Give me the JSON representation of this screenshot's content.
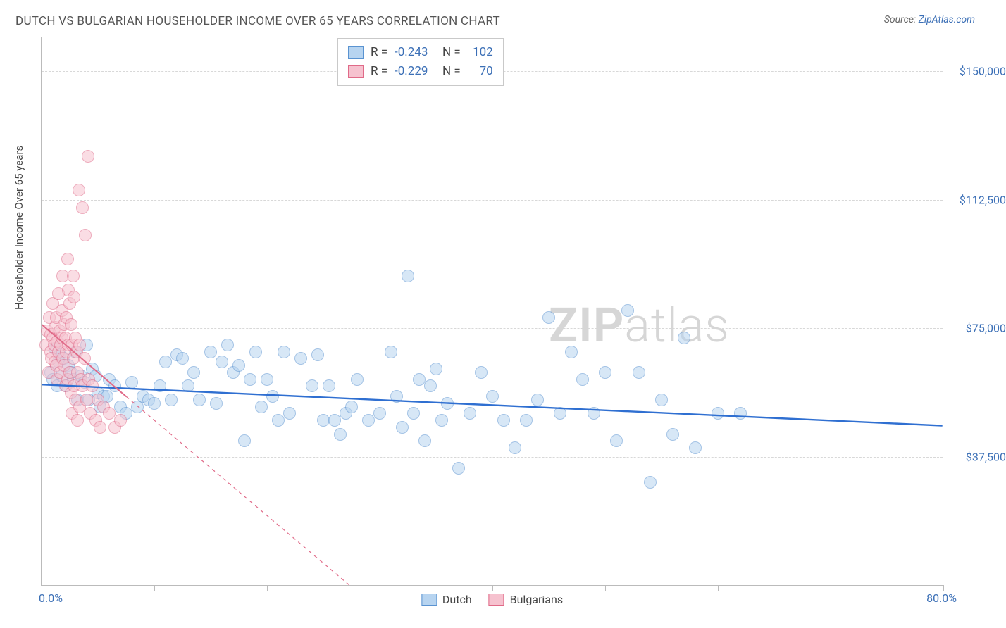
{
  "title": "DUTCH VS BULGARIAN HOUSEHOLDER INCOME OVER 65 YEARS CORRELATION CHART",
  "source_label": "Source: ",
  "source_name": "ZipAtlas.com",
  "watermark": {
    "zip": "ZIP",
    "atlas": "atlas"
  },
  "chart": {
    "type": "scatter",
    "background_color": "#ffffff",
    "grid_color": "#d8d8d8",
    "axis_color": "#bbbbbb",
    "xlim": [
      0,
      80
    ],
    "ylim": [
      0,
      160000
    ],
    "x_axis": {
      "min_label": "0.0%",
      "max_label": "80.0%",
      "tick_positions": [
        0,
        10,
        20,
        30,
        40,
        50,
        60,
        70,
        80
      ]
    },
    "y_axis": {
      "label": "Householder Income Over 65 years",
      "label_fontsize": 15,
      "ticks": [
        {
          "value": 37500,
          "label": "$37,500"
        },
        {
          "value": 75000,
          "label": "$75,000"
        },
        {
          "value": 112500,
          "label": "$112,500"
        },
        {
          "value": 150000,
          "label": "$150,000"
        }
      ],
      "tick_color": "#3b6fb6",
      "tick_fontsize": 16
    },
    "series": [
      {
        "name": "Dutch",
        "fill": "#b7d4f0",
        "stroke": "#5a93d1",
        "opacity": 0.55,
        "marker_radius": 9,
        "trend": {
          "color": "#2f6fd1",
          "width": 2.4,
          "x1": 0,
          "y1": 58500,
          "x2": 80,
          "y2": 46500,
          "dash": "none"
        },
        "points": [
          [
            0.8,
            62000
          ],
          [
            1.0,
            60000
          ],
          [
            1.2,
            69000
          ],
          [
            1.4,
            58000
          ],
          [
            1.5,
            65000
          ],
          [
            1.6,
            67000
          ],
          [
            1.8,
            61000
          ],
          [
            2.0,
            66000
          ],
          [
            2.2,
            58000
          ],
          [
            2.4,
            64000
          ],
          [
            2.6,
            62000
          ],
          [
            2.8,
            60000
          ],
          [
            3.0,
            68000
          ],
          [
            3.2,
            54000
          ],
          [
            3.5,
            61000
          ],
          [
            3.8,
            59000
          ],
          [
            4.0,
            70000
          ],
          [
            4.2,
            54000
          ],
          [
            4.5,
            63000
          ],
          [
            4.8,
            61000
          ],
          [
            5.0,
            56000
          ],
          [
            5.2,
            52000
          ],
          [
            5.5,
            55000
          ],
          [
            5.8,
            55000
          ],
          [
            6.0,
            60000
          ],
          [
            6.5,
            58000
          ],
          [
            7.0,
            52000
          ],
          [
            7.5,
            50000
          ],
          [
            8.0,
            59000
          ],
          [
            8.5,
            52000
          ],
          [
            9.0,
            55000
          ],
          [
            9.5,
            54000
          ],
          [
            10.0,
            53000
          ],
          [
            10.5,
            58000
          ],
          [
            11.0,
            65000
          ],
          [
            11.5,
            54000
          ],
          [
            12.0,
            67000
          ],
          [
            12.5,
            66000
          ],
          [
            13.0,
            58000
          ],
          [
            13.5,
            62000
          ],
          [
            14.0,
            54000
          ],
          [
            15.0,
            68000
          ],
          [
            15.5,
            53000
          ],
          [
            16.0,
            65000
          ],
          [
            16.5,
            70000
          ],
          [
            17.0,
            62000
          ],
          [
            17.5,
            64000
          ],
          [
            18.0,
            42000
          ],
          [
            18.5,
            60000
          ],
          [
            19.0,
            68000
          ],
          [
            19.5,
            52000
          ],
          [
            20.0,
            60000
          ],
          [
            20.5,
            55000
          ],
          [
            21.0,
            48000
          ],
          [
            21.5,
            68000
          ],
          [
            22.0,
            50000
          ],
          [
            23.0,
            66000
          ],
          [
            24.0,
            58000
          ],
          [
            24.5,
            67000
          ],
          [
            25.0,
            48000
          ],
          [
            25.5,
            58000
          ],
          [
            26.0,
            48000
          ],
          [
            26.5,
            44000
          ],
          [
            27.0,
            50000
          ],
          [
            27.5,
            52000
          ],
          [
            28.0,
            60000
          ],
          [
            29.0,
            48000
          ],
          [
            30.0,
            50000
          ],
          [
            31.0,
            68000
          ],
          [
            31.5,
            55000
          ],
          [
            32.0,
            46000
          ],
          [
            32.5,
            90000
          ],
          [
            33.0,
            50000
          ],
          [
            33.5,
            60000
          ],
          [
            34.0,
            42000
          ],
          [
            34.5,
            58000
          ],
          [
            35.0,
            63000
          ],
          [
            35.5,
            48000
          ],
          [
            36.0,
            53000
          ],
          [
            37.0,
            34000
          ],
          [
            38.0,
            50000
          ],
          [
            39.0,
            62000
          ],
          [
            40.0,
            55000
          ],
          [
            41.0,
            48000
          ],
          [
            42.0,
            40000
          ],
          [
            43.0,
            48000
          ],
          [
            44.0,
            54000
          ],
          [
            45.0,
            78000
          ],
          [
            46.0,
            50000
          ],
          [
            47.0,
            68000
          ],
          [
            48.0,
            60000
          ],
          [
            49.0,
            50000
          ],
          [
            50.0,
            62000
          ],
          [
            51.0,
            42000
          ],
          [
            52.0,
            80000
          ],
          [
            53.0,
            62000
          ],
          [
            54.0,
            30000
          ],
          [
            55.0,
            54000
          ],
          [
            56.0,
            44000
          ],
          [
            57.0,
            72000
          ],
          [
            58.0,
            40000
          ],
          [
            60.0,
            50000
          ],
          [
            62.0,
            50000
          ]
        ]
      },
      {
        "name": "Bulgarians",
        "fill": "#f6c2cf",
        "stroke": "#e06a88",
        "opacity": 0.55,
        "marker_radius": 9,
        "trend": {
          "color": "#e06a88",
          "width": 2.0,
          "x1": 0,
          "y1": 76000,
          "x2": 7.5,
          "y2": 55000,
          "dash": "none",
          "ext_x2": 32,
          "ext_y2": -13000,
          "ext_dash": "5,5"
        },
        "points": [
          [
            0.4,
            70000
          ],
          [
            0.5,
            74000
          ],
          [
            0.6,
            62000
          ],
          [
            0.7,
            78000
          ],
          [
            0.8,
            73000
          ],
          [
            0.8,
            68000
          ],
          [
            0.9,
            66000
          ],
          [
            1.0,
            82000
          ],
          [
            1.0,
            72000
          ],
          [
            1.1,
            70000
          ],
          [
            1.2,
            75000
          ],
          [
            1.2,
            65000
          ],
          [
            1.3,
            78000
          ],
          [
            1.3,
            64000
          ],
          [
            1.4,
            71000
          ],
          [
            1.4,
            60000
          ],
          [
            1.5,
            85000
          ],
          [
            1.5,
            68000
          ],
          [
            1.6,
            74000
          ],
          [
            1.6,
            62000
          ],
          [
            1.7,
            70000
          ],
          [
            1.8,
            80000
          ],
          [
            1.8,
            72000
          ],
          [
            1.9,
            66000
          ],
          [
            1.9,
            90000
          ],
          [
            2.0,
            76000
          ],
          [
            2.0,
            64000
          ],
          [
            2.1,
            58000
          ],
          [
            2.1,
            72000
          ],
          [
            2.2,
            78000
          ],
          [
            2.2,
            68000
          ],
          [
            2.3,
            95000
          ],
          [
            2.3,
            60000
          ],
          [
            2.4,
            86000
          ],
          [
            2.4,
            70000
          ],
          [
            2.5,
            82000
          ],
          [
            2.5,
            62000
          ],
          [
            2.6,
            76000
          ],
          [
            2.6,
            56000
          ],
          [
            2.7,
            70000
          ],
          [
            2.7,
            50000
          ],
          [
            2.8,
            90000
          ],
          [
            2.8,
            66000
          ],
          [
            2.9,
            84000
          ],
          [
            2.9,
            58000
          ],
          [
            3.0,
            72000
          ],
          [
            3.0,
            54000
          ],
          [
            3.1,
            68000
          ],
          [
            3.2,
            62000
          ],
          [
            3.2,
            48000
          ],
          [
            3.3,
            115000
          ],
          [
            3.4,
            70000
          ],
          [
            3.4,
            52000
          ],
          [
            3.5,
            60000
          ],
          [
            3.6,
            110000
          ],
          [
            3.6,
            58000
          ],
          [
            3.8,
            66000
          ],
          [
            3.9,
            102000
          ],
          [
            4.0,
            54000
          ],
          [
            4.1,
            125000
          ],
          [
            4.2,
            60000
          ],
          [
            4.3,
            50000
          ],
          [
            4.5,
            58000
          ],
          [
            4.8,
            48000
          ],
          [
            5.0,
            54000
          ],
          [
            5.2,
            46000
          ],
          [
            5.5,
            52000
          ],
          [
            6.0,
            50000
          ],
          [
            6.5,
            46000
          ],
          [
            7.0,
            48000
          ]
        ]
      }
    ],
    "stats_box": {
      "rows": [
        {
          "swatch_fill": "#b7d4f0",
          "swatch_stroke": "#5a93d1",
          "r_label": "R =",
          "r": "-0.243",
          "n_label": "N =",
          "n": "102"
        },
        {
          "swatch_fill": "#f6c2cf",
          "swatch_stroke": "#e06a88",
          "r_label": "R =",
          "r": "-0.229",
          "n_label": "N =",
          "n": "70"
        }
      ]
    },
    "legend": [
      {
        "label": "Dutch",
        "fill": "#b7d4f0",
        "stroke": "#5a93d1"
      },
      {
        "label": "Bulgarians",
        "fill": "#f6c2cf",
        "stroke": "#e06a88"
      }
    ]
  }
}
